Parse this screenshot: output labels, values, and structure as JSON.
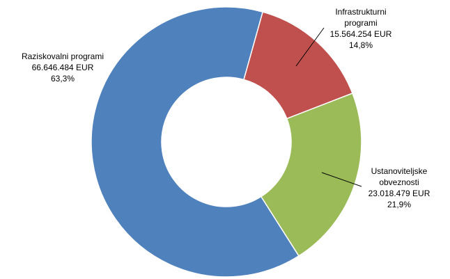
{
  "chart_data": {
    "type": "doughnut",
    "categories": [
      "Infrastrukturni programi",
      "Ustanoviteljske obveznosti",
      "Raziskovalni programi"
    ],
    "values": [
      15564254,
      23018479,
      66646484
    ],
    "value_labels": [
      "15.564.254 EUR",
      "23.018.479 EUR",
      "66.646.484 EUR"
    ],
    "percent_labels": [
      "14,8%",
      "21,9%",
      "63,3%"
    ],
    "colors": [
      "#c0504d",
      "#9bbb59",
      "#4f81bd"
    ]
  }
}
